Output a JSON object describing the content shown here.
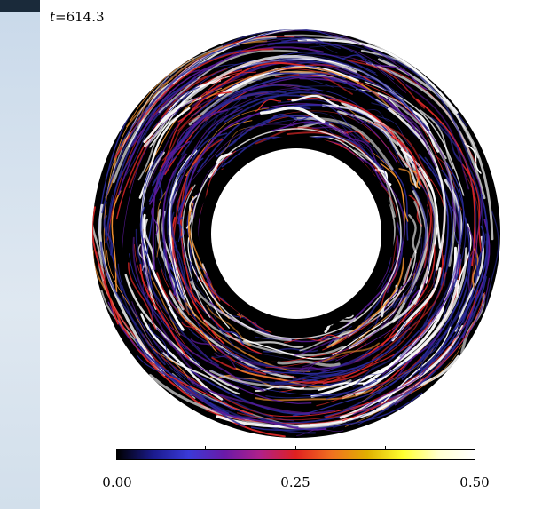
{
  "time_label": {
    "symbol": "t",
    "value": "=614.3"
  },
  "colorbar": {
    "min_label": "0.00",
    "mid_label": "0.25",
    "max_label": "0.50",
    "colors": [
      "#000000",
      "#1a1a8c",
      "#3a3ad8",
      "#6a1aa8",
      "#b0208a",
      "#e02020",
      "#f07020",
      "#e0b000",
      "#ffff30",
      "#ffffd0",
      "#ffffff"
    ]
  },
  "plot_colors": {
    "background": "#000000",
    "blue_streak": "#2a2a9a",
    "purple_streak": "#5a1a9a",
    "red_streak": "#e02828",
    "orange_streak": "#f09030",
    "white_streak": "#ffffff",
    "inner_hole": "#ffffff"
  }
}
